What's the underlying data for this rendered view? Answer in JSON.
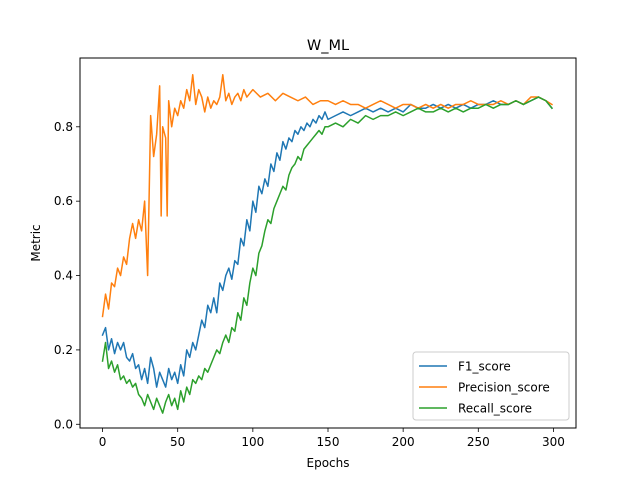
{
  "chart_data": {
    "type": "line",
    "title": "W_ML",
    "xlabel": "Epochs",
    "ylabel": "Metric",
    "xlim": [
      -15,
      315
    ],
    "ylim": [
      -0.01,
      0.985
    ],
    "xticks": [
      0,
      50,
      100,
      150,
      200,
      250,
      300
    ],
    "yticks": [
      0.0,
      0.2,
      0.4,
      0.6,
      0.8
    ],
    "ytick_labels": [
      "0.0",
      "0.2",
      "0.4",
      "0.6",
      "0.8"
    ],
    "grid": false,
    "legend_position": "lower-right",
    "series": [
      {
        "name": "F1_score",
        "color": "#1f77b4",
        "points": [
          [
            0,
            0.24
          ],
          [
            2,
            0.26
          ],
          [
            4,
            0.2
          ],
          [
            6,
            0.23
          ],
          [
            8,
            0.19
          ],
          [
            10,
            0.22
          ],
          [
            12,
            0.2
          ],
          [
            14,
            0.22
          ],
          [
            16,
            0.18
          ],
          [
            18,
            0.17
          ],
          [
            20,
            0.19
          ],
          [
            22,
            0.15
          ],
          [
            24,
            0.16
          ],
          [
            26,
            0.12
          ],
          [
            28,
            0.15
          ],
          [
            30,
            0.11
          ],
          [
            32,
            0.18
          ],
          [
            34,
            0.15
          ],
          [
            36,
            0.1
          ],
          [
            38,
            0.14
          ],
          [
            40,
            0.12
          ],
          [
            42,
            0.1
          ],
          [
            44,
            0.15
          ],
          [
            46,
            0.12
          ],
          [
            48,
            0.14
          ],
          [
            50,
            0.11
          ],
          [
            52,
            0.16
          ],
          [
            54,
            0.13
          ],
          [
            56,
            0.2
          ],
          [
            58,
            0.18
          ],
          [
            60,
            0.22
          ],
          [
            62,
            0.2
          ],
          [
            64,
            0.24
          ],
          [
            66,
            0.28
          ],
          [
            68,
            0.26
          ],
          [
            70,
            0.32
          ],
          [
            72,
            0.3
          ],
          [
            74,
            0.34
          ],
          [
            76,
            0.3
          ],
          [
            78,
            0.38
          ],
          [
            80,
            0.36
          ],
          [
            82,
            0.4
          ],
          [
            84,
            0.42
          ],
          [
            86,
            0.39
          ],
          [
            88,
            0.44
          ],
          [
            90,
            0.43
          ],
          [
            92,
            0.5
          ],
          [
            94,
            0.48
          ],
          [
            96,
            0.55
          ],
          [
            98,
            0.52
          ],
          [
            100,
            0.6
          ],
          [
            102,
            0.57
          ],
          [
            104,
            0.64
          ],
          [
            106,
            0.62
          ],
          [
            108,
            0.66
          ],
          [
            110,
            0.64
          ],
          [
            112,
            0.7
          ],
          [
            114,
            0.68
          ],
          [
            116,
            0.73
          ],
          [
            118,
            0.71
          ],
          [
            120,
            0.76
          ],
          [
            122,
            0.74
          ],
          [
            124,
            0.77
          ],
          [
            126,
            0.76
          ],
          [
            128,
            0.79
          ],
          [
            130,
            0.78
          ],
          [
            132,
            0.8
          ],
          [
            134,
            0.79
          ],
          [
            136,
            0.81
          ],
          [
            138,
            0.8
          ],
          [
            140,
            0.82
          ],
          [
            142,
            0.81
          ],
          [
            144,
            0.83
          ],
          [
            146,
            0.82
          ],
          [
            148,
            0.84
          ],
          [
            150,
            0.82
          ],
          [
            155,
            0.83
          ],
          [
            160,
            0.84
          ],
          [
            165,
            0.83
          ],
          [
            170,
            0.84
          ],
          [
            175,
            0.85
          ],
          [
            180,
            0.84
          ],
          [
            185,
            0.85
          ],
          [
            190,
            0.84
          ],
          [
            195,
            0.85
          ],
          [
            200,
            0.84
          ],
          [
            205,
            0.86
          ],
          [
            210,
            0.85
          ],
          [
            215,
            0.85
          ],
          [
            220,
            0.86
          ],
          [
            225,
            0.85
          ],
          [
            230,
            0.86
          ],
          [
            235,
            0.85
          ],
          [
            240,
            0.86
          ],
          [
            245,
            0.85
          ],
          [
            250,
            0.86
          ],
          [
            255,
            0.86
          ],
          [
            260,
            0.87
          ],
          [
            265,
            0.86
          ],
          [
            270,
            0.86
          ],
          [
            275,
            0.87
          ],
          [
            280,
            0.86
          ],
          [
            285,
            0.87
          ],
          [
            290,
            0.88
          ],
          [
            295,
            0.87
          ],
          [
            299,
            0.85
          ]
        ]
      },
      {
        "name": "Precision_score",
        "color": "#ff7f0e",
        "points": [
          [
            0,
            0.29
          ],
          [
            2,
            0.35
          ],
          [
            4,
            0.31
          ],
          [
            6,
            0.38
          ],
          [
            8,
            0.37
          ],
          [
            10,
            0.42
          ],
          [
            12,
            0.4
          ],
          [
            14,
            0.45
          ],
          [
            16,
            0.43
          ],
          [
            18,
            0.5
          ],
          [
            20,
            0.54
          ],
          [
            22,
            0.5
          ],
          [
            24,
            0.55
          ],
          [
            26,
            0.52
          ],
          [
            28,
            0.6
          ],
          [
            30,
            0.4
          ],
          [
            32,
            0.83
          ],
          [
            34,
            0.72
          ],
          [
            36,
            0.78
          ],
          [
            38,
            0.91
          ],
          [
            39,
            0.56
          ],
          [
            40,
            0.8
          ],
          [
            42,
            0.77
          ],
          [
            43,
            0.56
          ],
          [
            44,
            0.87
          ],
          [
            46,
            0.8
          ],
          [
            48,
            0.85
          ],
          [
            50,
            0.83
          ],
          [
            52,
            0.87
          ],
          [
            54,
            0.85
          ],
          [
            56,
            0.9
          ],
          [
            58,
            0.87
          ],
          [
            60,
            0.94
          ],
          [
            62,
            0.86
          ],
          [
            64,
            0.9
          ],
          [
            66,
            0.88
          ],
          [
            68,
            0.84
          ],
          [
            70,
            0.88
          ],
          [
            72,
            0.85
          ],
          [
            74,
            0.87
          ],
          [
            76,
            0.86
          ],
          [
            78,
            0.88
          ],
          [
            80,
            0.94
          ],
          [
            82,
            0.87
          ],
          [
            84,
            0.89
          ],
          [
            86,
            0.86
          ],
          [
            88,
            0.88
          ],
          [
            90,
            0.89
          ],
          [
            92,
            0.87
          ],
          [
            94,
            0.9
          ],
          [
            96,
            0.88
          ],
          [
            98,
            0.89
          ],
          [
            100,
            0.9
          ],
          [
            105,
            0.88
          ],
          [
            110,
            0.89
          ],
          [
            115,
            0.87
          ],
          [
            120,
            0.89
          ],
          [
            125,
            0.88
          ],
          [
            130,
            0.87
          ],
          [
            135,
            0.88
          ],
          [
            140,
            0.86
          ],
          [
            145,
            0.87
          ],
          [
            150,
            0.87
          ],
          [
            155,
            0.86
          ],
          [
            160,
            0.87
          ],
          [
            165,
            0.86
          ],
          [
            170,
            0.86
          ],
          [
            175,
            0.85
          ],
          [
            180,
            0.86
          ],
          [
            185,
            0.87
          ],
          [
            190,
            0.86
          ],
          [
            195,
            0.85
          ],
          [
            200,
            0.86
          ],
          [
            205,
            0.86
          ],
          [
            210,
            0.85
          ],
          [
            215,
            0.86
          ],
          [
            220,
            0.85
          ],
          [
            225,
            0.86
          ],
          [
            230,
            0.85
          ],
          [
            235,
            0.86
          ],
          [
            240,
            0.86
          ],
          [
            245,
            0.87
          ],
          [
            250,
            0.86
          ],
          [
            255,
            0.86
          ],
          [
            260,
            0.86
          ],
          [
            265,
            0.87
          ],
          [
            270,
            0.86
          ],
          [
            275,
            0.87
          ],
          [
            280,
            0.86
          ],
          [
            285,
            0.88
          ],
          [
            290,
            0.88
          ],
          [
            295,
            0.87
          ],
          [
            299,
            0.86
          ]
        ]
      },
      {
        "name": "Recall_score",
        "color": "#2ca02c",
        "points": [
          [
            0,
            0.17
          ],
          [
            2,
            0.22
          ],
          [
            4,
            0.15
          ],
          [
            6,
            0.17
          ],
          [
            8,
            0.14
          ],
          [
            10,
            0.16
          ],
          [
            12,
            0.12
          ],
          [
            14,
            0.13
          ],
          [
            16,
            0.11
          ],
          [
            18,
            0.12
          ],
          [
            20,
            0.1
          ],
          [
            22,
            0.11
          ],
          [
            24,
            0.08
          ],
          [
            26,
            0.07
          ],
          [
            28,
            0.05
          ],
          [
            30,
            0.08
          ],
          [
            32,
            0.06
          ],
          [
            34,
            0.04
          ],
          [
            36,
            0.07
          ],
          [
            38,
            0.05
          ],
          [
            40,
            0.03
          ],
          [
            42,
            0.06
          ],
          [
            44,
            0.08
          ],
          [
            46,
            0.05
          ],
          [
            48,
            0.07
          ],
          [
            50,
            0.04
          ],
          [
            52,
            0.09
          ],
          [
            54,
            0.06
          ],
          [
            56,
            0.1
          ],
          [
            58,
            0.08
          ],
          [
            60,
            0.12
          ],
          [
            62,
            0.11
          ],
          [
            64,
            0.13
          ],
          [
            66,
            0.12
          ],
          [
            68,
            0.15
          ],
          [
            70,
            0.14
          ],
          [
            72,
            0.16
          ],
          [
            74,
            0.18
          ],
          [
            76,
            0.2
          ],
          [
            78,
            0.19
          ],
          [
            80,
            0.22
          ],
          [
            82,
            0.24
          ],
          [
            84,
            0.22
          ],
          [
            86,
            0.26
          ],
          [
            88,
            0.25
          ],
          [
            90,
            0.3
          ],
          [
            92,
            0.28
          ],
          [
            94,
            0.34
          ],
          [
            96,
            0.32
          ],
          [
            98,
            0.38
          ],
          [
            100,
            0.42
          ],
          [
            102,
            0.4
          ],
          [
            104,
            0.46
          ],
          [
            106,
            0.48
          ],
          [
            108,
            0.52
          ],
          [
            110,
            0.55
          ],
          [
            112,
            0.54
          ],
          [
            114,
            0.58
          ],
          [
            116,
            0.6
          ],
          [
            118,
            0.62
          ],
          [
            120,
            0.64
          ],
          [
            122,
            0.63
          ],
          [
            124,
            0.67
          ],
          [
            126,
            0.69
          ],
          [
            128,
            0.7
          ],
          [
            130,
            0.72
          ],
          [
            132,
            0.71
          ],
          [
            134,
            0.74
          ],
          [
            136,
            0.75
          ],
          [
            138,
            0.76
          ],
          [
            140,
            0.77
          ],
          [
            142,
            0.78
          ],
          [
            144,
            0.79
          ],
          [
            146,
            0.78
          ],
          [
            148,
            0.8
          ],
          [
            150,
            0.8
          ],
          [
            155,
            0.81
          ],
          [
            160,
            0.8
          ],
          [
            165,
            0.82
          ],
          [
            170,
            0.81
          ],
          [
            175,
            0.83
          ],
          [
            180,
            0.82
          ],
          [
            185,
            0.83
          ],
          [
            190,
            0.83
          ],
          [
            195,
            0.84
          ],
          [
            200,
            0.83
          ],
          [
            205,
            0.84
          ],
          [
            210,
            0.85
          ],
          [
            215,
            0.84
          ],
          [
            220,
            0.84
          ],
          [
            225,
            0.85
          ],
          [
            230,
            0.84
          ],
          [
            235,
            0.85
          ],
          [
            240,
            0.84
          ],
          [
            245,
            0.85
          ],
          [
            250,
            0.85
          ],
          [
            255,
            0.86
          ],
          [
            260,
            0.85
          ],
          [
            265,
            0.86
          ],
          [
            270,
            0.86
          ],
          [
            275,
            0.87
          ],
          [
            280,
            0.86
          ],
          [
            285,
            0.87
          ],
          [
            290,
            0.88
          ],
          [
            295,
            0.87
          ],
          [
            299,
            0.85
          ]
        ]
      }
    ]
  }
}
